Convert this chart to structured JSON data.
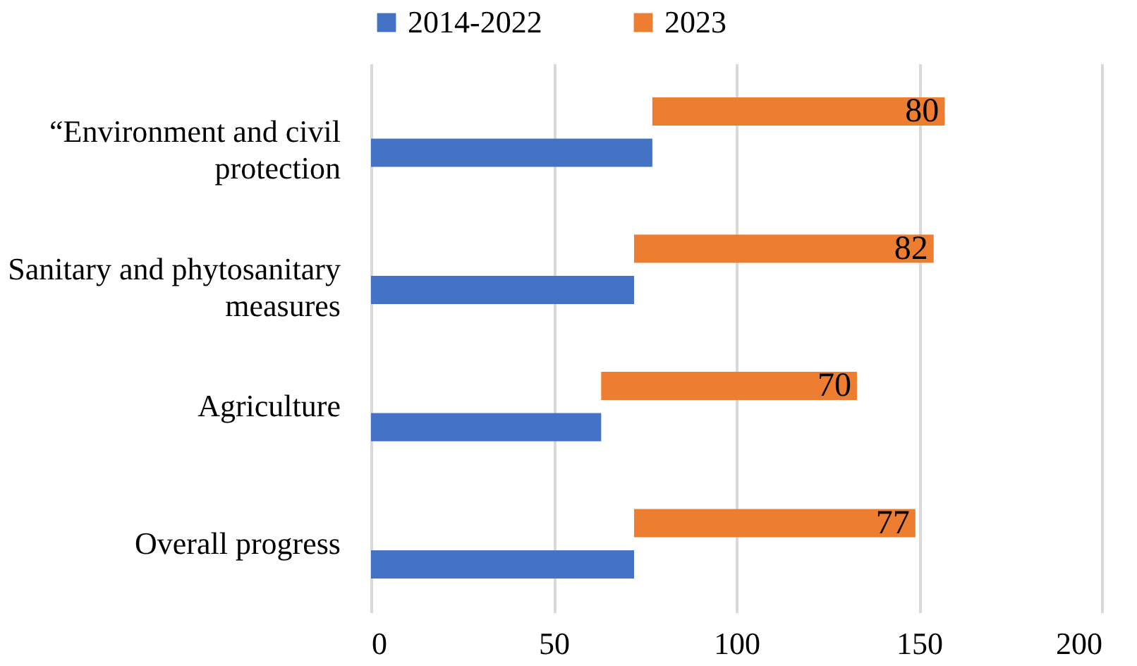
{
  "chart_data": {
    "type": "bar",
    "orientation": "horizontal",
    "stacked": true,
    "categories": [
      "“Environment and civil protection",
      "Sanitary and phytosanitary measures",
      "Agriculture",
      "Overall progress"
    ],
    "series": [
      {
        "name": "2014-2022",
        "color": "#4472c4",
        "values": [
          77,
          72,
          63,
          72
        ]
      },
      {
        "name": "2023",
        "color": "#ed7d31",
        "values": [
          80,
          82,
          70,
          77
        ],
        "value_labels": [
          "80",
          "82",
          "70",
          "77"
        ]
      }
    ],
    "xlim": [
      0,
      200
    ],
    "xticks": [
      0,
      50,
      100,
      150,
      200
    ],
    "grid": "x",
    "legend": "top"
  }
}
